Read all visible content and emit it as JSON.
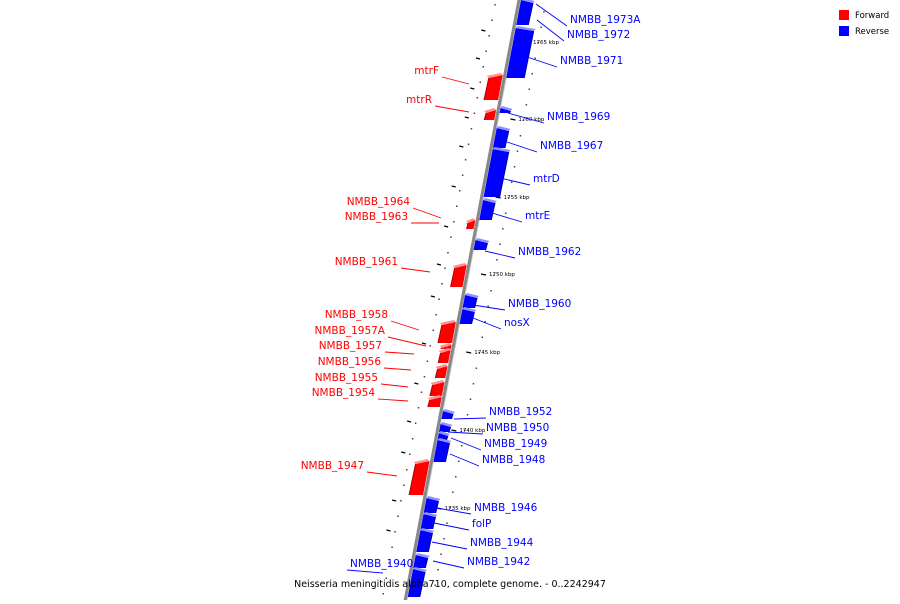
{
  "caption": "Neisseria meningitidis alpha710, complete genome. - 0..2242947",
  "legend": {
    "items": [
      {
        "label": "Forward",
        "color": "#ff0000"
      },
      {
        "label": "Reverse",
        "color": "#0000ff"
      }
    ]
  },
  "colors": {
    "forward": "#ff0000",
    "forward_dark": "#b00000",
    "forward_top": "#ff9090",
    "reverse": "#0000ff",
    "reverse_dark": "#0000a0",
    "reverse_top": "#9090ff",
    "axis": "#888888"
  },
  "ruler": {
    "unit": "kbp",
    "labels": [
      "1765 kbp",
      "1760 kbp",
      "1755 kbp",
      "1750 kbp",
      "1745 kbp",
      "1740 kbp",
      "1735 kbp"
    ]
  },
  "genes": [
    {
      "name": "NMBB_1973A",
      "strand": "reverse"
    },
    {
      "name": "NMBB_1972",
      "strand": "reverse"
    },
    {
      "name": "NMBB_1971",
      "strand": "reverse"
    },
    {
      "name": "mtrF",
      "strand": "forward"
    },
    {
      "name": "mtrR",
      "strand": "forward"
    },
    {
      "name": "NMBB_1969",
      "strand": "reverse"
    },
    {
      "name": "NMBB_1967",
      "strand": "reverse"
    },
    {
      "name": "mtrD",
      "strand": "reverse"
    },
    {
      "name": "NMBB_1964",
      "strand": "forward"
    },
    {
      "name": "NMBB_1963",
      "strand": "forward"
    },
    {
      "name": "mtrE",
      "strand": "reverse"
    },
    {
      "name": "NMBB_1962",
      "strand": "reverse"
    },
    {
      "name": "NMBB_1961",
      "strand": "forward"
    },
    {
      "name": "NMBB_1960",
      "strand": "reverse"
    },
    {
      "name": "nosX",
      "strand": "reverse"
    },
    {
      "name": "NMBB_1958",
      "strand": "forward"
    },
    {
      "name": "NMBB_1957A",
      "strand": "forward"
    },
    {
      "name": "NMBB_1957",
      "strand": "forward"
    },
    {
      "name": "NMBB_1956",
      "strand": "forward"
    },
    {
      "name": "NMBB_1955",
      "strand": "forward"
    },
    {
      "name": "NMBB_1954",
      "strand": "forward"
    },
    {
      "name": "NMBB_1952",
      "strand": "reverse"
    },
    {
      "name": "NMBB_1950",
      "strand": "reverse"
    },
    {
      "name": "NMBB_1949",
      "strand": "reverse"
    },
    {
      "name": "NMBB_1948",
      "strand": "reverse"
    },
    {
      "name": "NMBB_1947",
      "strand": "forward"
    },
    {
      "name": "NMBB_1946",
      "strand": "reverse"
    },
    {
      "name": "folP",
      "strand": "reverse"
    },
    {
      "name": "NMBB_1944",
      "strand": "reverse"
    },
    {
      "name": "NMBB_1942",
      "strand": "reverse"
    },
    {
      "name": "NMBB_1940",
      "strand": "reverse"
    }
  ]
}
